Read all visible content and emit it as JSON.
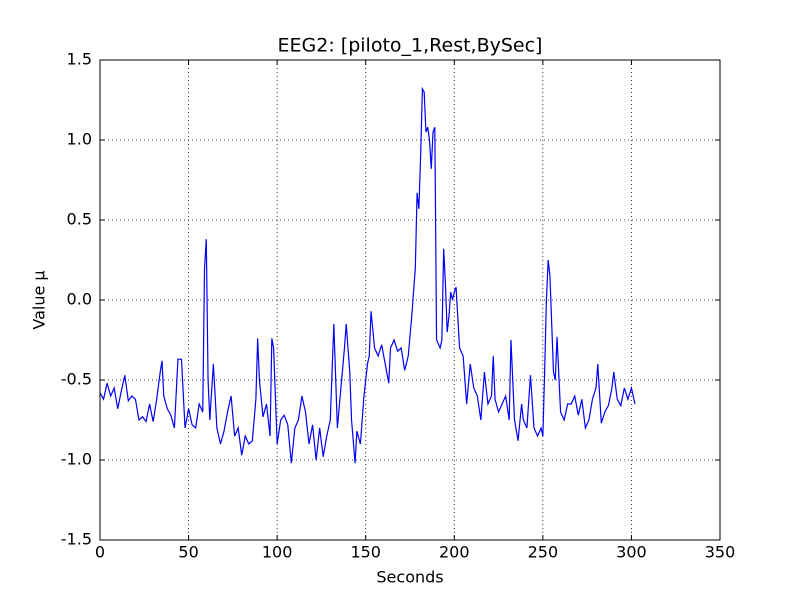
{
  "chart_data": {
    "type": "line",
    "title": "EEG2: [piloto_1,Rest,BySec]",
    "x_label": "Seconds",
    "y_label": "Value μ",
    "grid": true,
    "xlim": [
      0,
      350
    ],
    "xticks": [
      0,
      50,
      100,
      150,
      200,
      250,
      300,
      350
    ],
    "ylim": [
      -1.5,
      1.5
    ],
    "yticks": [
      -1.5,
      {
        "value": -1,
        "label": "-1.0"
      },
      -0.5,
      {
        "value": 0,
        "label": "0.0"
      },
      0.5,
      {
        "value": 1,
        "label": "1.0"
      },
      1.5
    ],
    "x": [
      0,
      2,
      4,
      6,
      8,
      10,
      12,
      14,
      16,
      18,
      20,
      22,
      24,
      26,
      28,
      30,
      32,
      34,
      35,
      36,
      38,
      40,
      42,
      44,
      46,
      48,
      50,
      52,
      54,
      56,
      58,
      59,
      60,
      61,
      62,
      64,
      66,
      68,
      70,
      72,
      74,
      76,
      78,
      80,
      82,
      84,
      86,
      88,
      89,
      90,
      92,
      94,
      96,
      97,
      98,
      100,
      102,
      104,
      106,
      108,
      110,
      112,
      114,
      116,
      118,
      120,
      122,
      124,
      126,
      128,
      130,
      132,
      134,
      136,
      138,
      139,
      141,
      142,
      144,
      145,
      147,
      149,
      151,
      152,
      153,
      155,
      157,
      159,
      161,
      163,
      164,
      166,
      168,
      170,
      172,
      174,
      176,
      178,
      179,
      180,
      181,
      182,
      183,
      184,
      185,
      186,
      187,
      188,
      189,
      190,
      192,
      193,
      194,
      195,
      196,
      197,
      198,
      199,
      200,
      201,
      203,
      205,
      207,
      209,
      211,
      213,
      215,
      217,
      219,
      221,
      222,
      223,
      225,
      227,
      229,
      231,
      232,
      234,
      236,
      238,
      239,
      241,
      243,
      245,
      247,
      249,
      250,
      251,
      252,
      253,
      254,
      256,
      257,
      258,
      260,
      262,
      264,
      266,
      268,
      270,
      272,
      274,
      276,
      278,
      280,
      281,
      283,
      285,
      287,
      289,
      290,
      292,
      294,
      296,
      298,
      300,
      302
    ],
    "series": [
      {
        "name": "EEG2",
        "color": "#0000ff",
        "values": [
          -0.58,
          -0.62,
          -0.52,
          -0.6,
          -0.55,
          -0.68,
          -0.57,
          -0.47,
          -0.63,
          -0.6,
          -0.62,
          -0.75,
          -0.73,
          -0.76,
          -0.65,
          -0.76,
          -0.62,
          -0.45,
          -0.38,
          -0.6,
          -0.68,
          -0.72,
          -0.8,
          -0.37,
          -0.37,
          -0.8,
          -0.68,
          -0.78,
          -0.8,
          -0.65,
          -0.7,
          0.2,
          0.38,
          -0.5,
          -0.75,
          -0.4,
          -0.8,
          -0.9,
          -0.82,
          -0.7,
          -0.6,
          -0.85,
          -0.8,
          -0.97,
          -0.85,
          -0.9,
          -0.88,
          -0.62,
          -0.24,
          -0.5,
          -0.73,
          -0.65,
          -0.85,
          -0.24,
          -0.3,
          -0.9,
          -0.75,
          -0.72,
          -0.78,
          -1.02,
          -0.8,
          -0.75,
          -0.6,
          -0.7,
          -0.9,
          -0.78,
          -1.0,
          -0.8,
          -0.98,
          -0.85,
          -0.75,
          -0.15,
          -0.8,
          -0.55,
          -0.3,
          -0.15,
          -0.45,
          -0.75,
          -1.02,
          -0.82,
          -0.9,
          -0.6,
          -0.4,
          -0.35,
          -0.07,
          -0.3,
          -0.35,
          -0.28,
          -0.4,
          -0.52,
          -0.3,
          -0.25,
          -0.32,
          -0.3,
          -0.44,
          -0.35,
          -0.1,
          0.2,
          0.67,
          0.57,
          0.9,
          1.32,
          1.3,
          1.05,
          1.08,
          1.0,
          0.82,
          1.05,
          1.08,
          -0.25,
          -0.3,
          -0.25,
          0.32,
          0.1,
          -0.2,
          -0.1,
          0.05,
          0,
          0.05,
          0.08,
          -0.3,
          -0.35,
          -0.65,
          -0.4,
          -0.55,
          -0.6,
          -0.75,
          -0.45,
          -0.65,
          -0.6,
          -0.35,
          -0.62,
          -0.7,
          -0.65,
          -0.6,
          -0.75,
          -0.25,
          -0.75,
          -0.88,
          -0.65,
          -0.75,
          -0.8,
          -0.47,
          -0.8,
          -0.85,
          -0.8,
          -0.85,
          -0.45,
          0.0,
          0.25,
          0.15,
          -0.45,
          -0.5,
          -0.23,
          -0.7,
          -0.75,
          -0.65,
          -0.65,
          -0.6,
          -0.72,
          -0.62,
          -0.8,
          -0.75,
          -0.62,
          -0.55,
          -0.4,
          -0.77,
          -0.7,
          -0.66,
          -0.55,
          -0.45,
          -0.62,
          -0.66,
          -0.55,
          -0.62,
          -0.55,
          -0.65
        ]
      }
    ]
  }
}
